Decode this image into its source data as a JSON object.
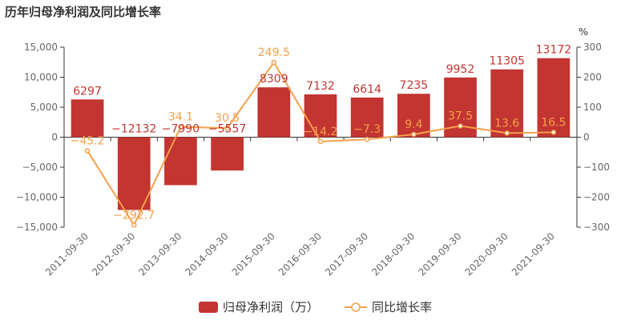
{
  "chart_data": {
    "type": "bar",
    "title": "历年归母净利润及同比增长率",
    "categories": [
      "2011-09-30",
      "2012-09-30",
      "2013-09-30",
      "2014-09-30",
      "2015-09-30",
      "2016-09-30",
      "2017-09-30",
      "2018-09-30",
      "2019-09-30",
      "2020-09-30",
      "2021-09-30"
    ],
    "series": [
      {
        "name": "归母净利润（万）",
        "type": "bar",
        "axis": "left",
        "color": "#c23531",
        "values": [
          6297,
          -12132,
          -7990,
          -5557,
          8309,
          7132,
          6614,
          7235,
          9952,
          11305,
          13172
        ],
        "labels": [
          "6297",
          "−12132",
          "−7990",
          "−5557",
          "8309",
          "7132",
          "6614",
          "7235",
          "9952",
          "11305",
          "13172"
        ]
      },
      {
        "name": "同比增长率",
        "type": "line",
        "axis": "right",
        "color": "#f5a04b",
        "values": [
          -45.2,
          -292.7,
          34.1,
          30.5,
          249.5,
          -14.2,
          -7.3,
          9.4,
          37.5,
          13.6,
          16.5
        ],
        "labels": [
          "−45.2",
          "−292.7",
          "34.1",
          "30.5",
          "249.5",
          "−14.2",
          "−7.3",
          "9.4",
          "37.5",
          "13.6",
          "16.5"
        ]
      }
    ],
    "y_left": {
      "range": [
        -15000,
        15000
      ],
      "ticks": [
        15000,
        10000,
        5000,
        0,
        -5000,
        -10000,
        -15000
      ],
      "tick_labels": [
        "15,000",
        "10,000",
        "5,000",
        "0",
        "−5,000",
        "−10,000",
        "−15,000"
      ]
    },
    "y_right": {
      "label": "%",
      "range": [
        -300,
        300
      ],
      "ticks": [
        300,
        200,
        100,
        0,
        -100,
        -200,
        -300
      ],
      "tick_labels": [
        "300",
        "200",
        "100",
        "0",
        "−100",
        "−200",
        "−300"
      ]
    },
    "grid": false,
    "legend": "bottom"
  }
}
